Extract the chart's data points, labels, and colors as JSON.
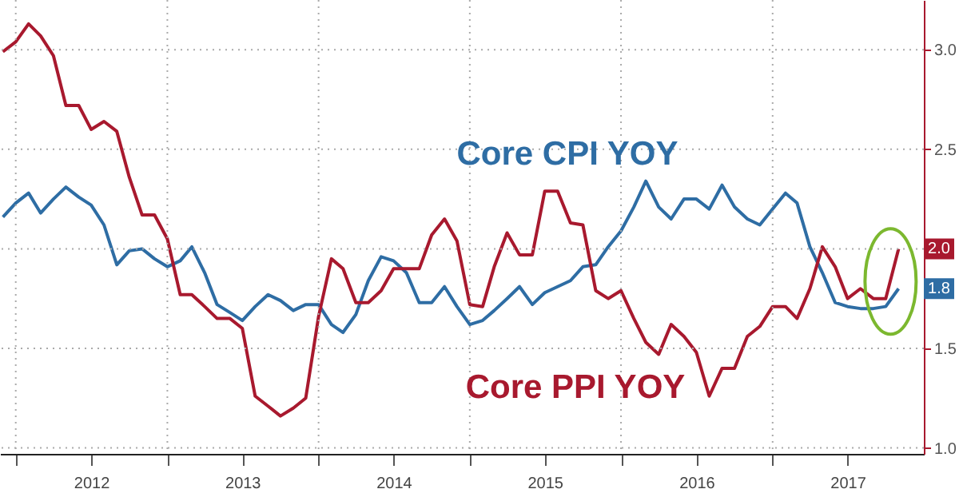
{
  "chart_data": {
    "type": "line",
    "x": [
      "2011-12",
      "2012-01",
      "2012-02",
      "2012-03",
      "2012-04",
      "2012-05",
      "2012-06",
      "2012-07",
      "2012-08",
      "2012-09",
      "2012-10",
      "2012-11",
      "2012-12",
      "2013-01",
      "2013-02",
      "2013-03",
      "2013-04",
      "2013-05",
      "2013-06",
      "2013-07",
      "2013-08",
      "2013-09",
      "2013-10",
      "2013-11",
      "2013-12",
      "2014-01",
      "2014-02",
      "2014-03",
      "2014-04",
      "2014-05",
      "2014-06",
      "2014-07",
      "2014-08",
      "2014-09",
      "2014-10",
      "2014-11",
      "2014-12",
      "2015-01",
      "2015-02",
      "2015-03",
      "2015-04",
      "2015-05",
      "2015-06",
      "2015-07",
      "2015-08",
      "2015-09",
      "2015-10",
      "2015-11",
      "2015-12",
      "2016-01",
      "2016-02",
      "2016-03",
      "2016-04",
      "2016-05",
      "2016-06",
      "2016-07",
      "2016-08",
      "2016-09",
      "2016-10",
      "2016-11",
      "2016-12",
      "2017-01",
      "2017-02",
      "2017-03",
      "2017-04",
      "2017-05",
      "2017-06",
      "2017-07",
      "2017-08",
      "2017-09",
      "2017-10",
      "2017-11"
    ],
    "series": [
      {
        "name": "Core CPI YOY",
        "color": "#2e6da4",
        "values": [
          2.16,
          2.23,
          2.28,
          2.18,
          2.25,
          2.31,
          2.26,
          2.22,
          2.12,
          1.92,
          1.99,
          2.0,
          1.95,
          1.91,
          1.94,
          2.01,
          1.88,
          1.72,
          1.68,
          1.64,
          1.71,
          1.77,
          1.74,
          1.69,
          1.72,
          1.72,
          1.62,
          1.58,
          1.67,
          1.84,
          1.96,
          1.94,
          1.88,
          1.73,
          1.73,
          1.81,
          1.71,
          1.62,
          1.64,
          1.69,
          1.75,
          1.81,
          1.72,
          1.78,
          1.81,
          1.84,
          1.91,
          1.92,
          2.01,
          2.09,
          2.21,
          2.34,
          2.21,
          2.15,
          2.25,
          2.25,
          2.2,
          2.32,
          2.21,
          2.15,
          2.12,
          2.2,
          2.28,
          2.23,
          2.01,
          1.88,
          1.73,
          1.71,
          1.7,
          1.7,
          1.71,
          1.8
        ],
        "value_labels": [
          null,
          null,
          null,
          null,
          null,
          null,
          null,
          null,
          null,
          null,
          null,
          null,
          null,
          null,
          null,
          null,
          null,
          null,
          null,
          null,
          null,
          null,
          null,
          null,
          null,
          null,
          null,
          null,
          null,
          null,
          null,
          null,
          null,
          null,
          null,
          null,
          null,
          null,
          null,
          null,
          null,
          null,
          null,
          null,
          null,
          null,
          null,
          null,
          null,
          null,
          null,
          null,
          null,
          null,
          null,
          null,
          null,
          null,
          null,
          null,
          null,
          null,
          null,
          null,
          null,
          null,
          null,
          null,
          null,
          null,
          null,
          "1.8"
        ]
      },
      {
        "name": "Core PPI YOY",
        "color": "#a8192e",
        "values": [
          2.99,
          3.04,
          3.13,
          3.07,
          2.97,
          2.72,
          2.72,
          2.6,
          2.64,
          2.59,
          2.36,
          2.17,
          2.17,
          2.05,
          1.77,
          1.77,
          1.71,
          1.65,
          1.65,
          1.6,
          1.26,
          1.21,
          1.16,
          1.2,
          1.25,
          1.66,
          1.95,
          1.9,
          1.73,
          1.73,
          1.79,
          1.9,
          1.9,
          1.9,
          2.07,
          2.15,
          2.04,
          1.72,
          1.71,
          1.91,
          2.08,
          1.97,
          1.97,
          2.29,
          2.29,
          2.13,
          2.12,
          1.79,
          1.75,
          1.79,
          1.65,
          1.53,
          1.47,
          1.62,
          1.56,
          1.48,
          1.26,
          1.4,
          1.4,
          1.56,
          1.61,
          1.71,
          1.71,
          1.65,
          1.8,
          2.01,
          1.91,
          1.75,
          1.8,
          1.75,
          1.75,
          2.0
        ],
        "value_labels": [
          null,
          null,
          null,
          null,
          null,
          null,
          null,
          null,
          null,
          null,
          null,
          null,
          null,
          null,
          null,
          null,
          null,
          null,
          null,
          null,
          null,
          null,
          null,
          null,
          null,
          null,
          null,
          null,
          null,
          null,
          null,
          null,
          null,
          null,
          null,
          null,
          null,
          null,
          null,
          null,
          null,
          null,
          null,
          null,
          null,
          null,
          null,
          null,
          null,
          null,
          null,
          null,
          null,
          null,
          null,
          null,
          null,
          null,
          null,
          null,
          null,
          null,
          null,
          null,
          null,
          null,
          null,
          null,
          null,
          null,
          null,
          "2.0"
        ]
      }
    ],
    "xlim": [
      "2011-11-24",
      "2018-01-01"
    ],
    "xticks": [
      {
        "value": "2012-01-01",
        "label": null
      },
      {
        "value": "2012-07-01",
        "label": "2012"
      },
      {
        "value": "2013-01-01",
        "label": null
      },
      {
        "value": "2013-07-01",
        "label": "2013"
      },
      {
        "value": "2014-01-01",
        "label": null
      },
      {
        "value": "2014-07-01",
        "label": "2014"
      },
      {
        "value": "2015-01-01",
        "label": null
      },
      {
        "value": "2015-07-01",
        "label": "2015"
      },
      {
        "value": "2016-01-01",
        "label": null
      },
      {
        "value": "2016-07-01",
        "label": "2016"
      },
      {
        "value": "2017-01-01",
        "label": null
      },
      {
        "value": "2017-07-01",
        "label": "2017"
      }
    ],
    "ylim": [
      0.97,
      3.25
    ],
    "yticks": [
      {
        "value": 1,
        "label": "1.0"
      },
      {
        "value": 1.5,
        "label": "1.5"
      },
      {
        "value": 2,
        "label": null
      },
      {
        "value": 2.5,
        "label": "2.5"
      },
      {
        "value": 3,
        "label": "3.0"
      }
    ],
    "grid": true
  }
}
